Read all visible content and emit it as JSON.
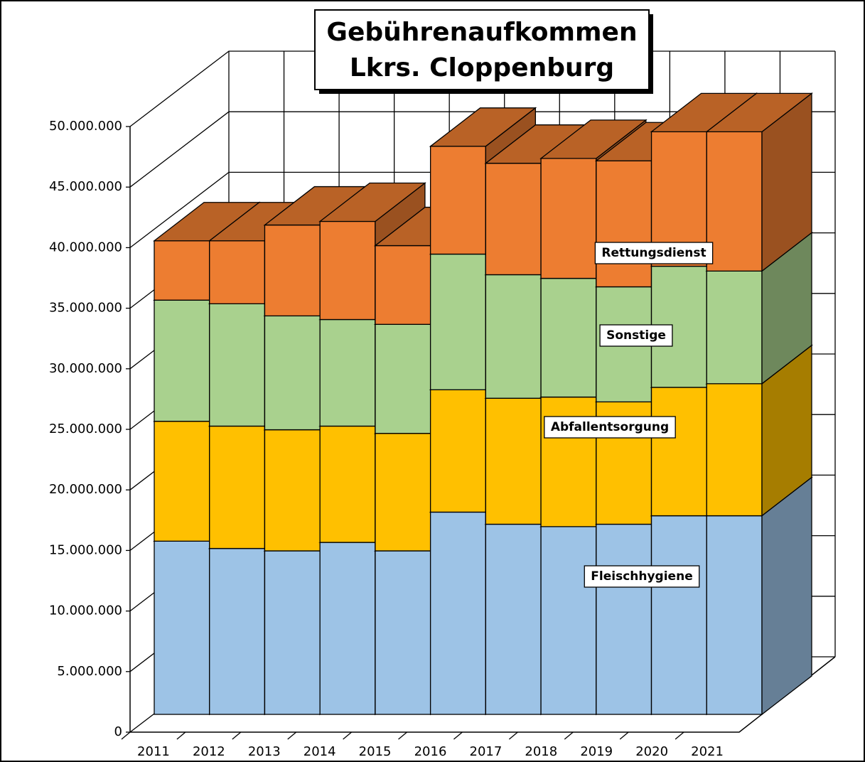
{
  "chart_data": {
    "type": "bar3d_stacked",
    "title": [
      "Gebührenaufkommen",
      "Lkrs. Cloppenburg"
    ],
    "categories": [
      "2011",
      "2012",
      "2013",
      "2014",
      "2015",
      "2016",
      "2017",
      "2018",
      "2019",
      "2020",
      "2021"
    ],
    "series": [
      {
        "name": "Fleischhygiene",
        "color": "#9DC3E6",
        "values": [
          14300000,
          13700000,
          13500000,
          14200000,
          13500000,
          16700000,
          15700000,
          15500000,
          15700000,
          16400000,
          16400000
        ]
      },
      {
        "name": "Abfallentsorgung",
        "color": "#FFC000",
        "values": [
          9900000,
          10100000,
          10000000,
          9600000,
          9700000,
          10100000,
          10400000,
          10700000,
          10100000,
          10600000,
          10900000
        ]
      },
      {
        "name": "Sonstige",
        "color": "#A9D18E",
        "values": [
          10000000,
          10100000,
          9400000,
          8800000,
          9000000,
          11200000,
          10200000,
          9800000,
          9500000,
          10000000,
          9300000
        ]
      },
      {
        "name": "Rettungsdienst",
        "color": "#ED7D31",
        "values": [
          4900000,
          5200000,
          7500000,
          8100000,
          6500000,
          8900000,
          9200000,
          9900000,
          10400000,
          11100000,
          11500000
        ]
      }
    ],
    "ylim": [
      0,
      50000000
    ],
    "yticks": [
      0,
      {
        "value": 5000000,
        "label": "5.000.000"
      },
      {
        "value": 10000000,
        "label": "10.000.000"
      },
      {
        "value": 15000000,
        "label": "15.000.000"
      },
      {
        "value": 20000000,
        "label": "20.000.000"
      },
      {
        "value": 25000000,
        "label": "25.000.000"
      },
      {
        "value": 30000000,
        "label": "30.000.000"
      },
      {
        "value": 35000000,
        "label": "35.000.000"
      },
      {
        "value": 40000000,
        "label": "40.000.000"
      },
      {
        "value": 45000000,
        "label": "45.000.000"
      },
      {
        "value": 50000000,
        "label": "50.000.000"
      }
    ],
    "grid": true
  }
}
